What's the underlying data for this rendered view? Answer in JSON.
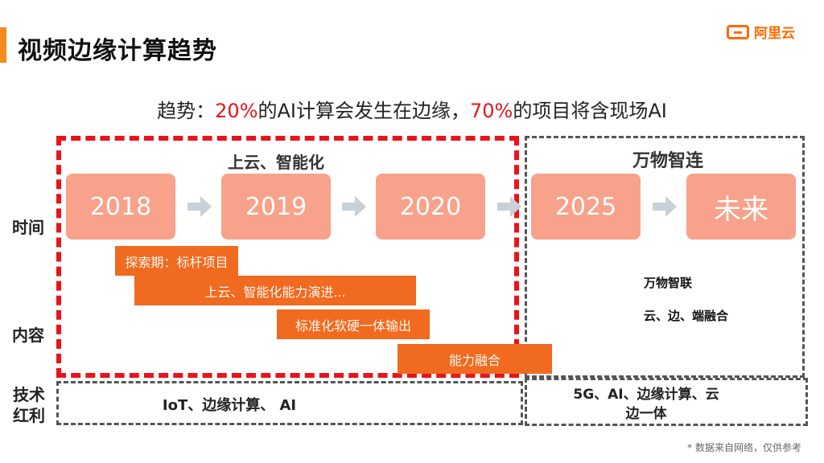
{
  "header": {
    "title": "视频边缘计算趋势",
    "logo_text": "阿里云",
    "accent_color": "#f28c1e",
    "logo_color": "#ff6a00"
  },
  "trend": {
    "prefix": "趋势：",
    "pct1": "20%",
    "mid": "的AI计算会发生在边缘，",
    "pct2": "70%",
    "suffix": "的项目将含现场AI",
    "highlight_color": "#e8141a"
  },
  "sections": {
    "left_title": "上云、智能化",
    "right_title": "万物智连"
  },
  "row_labels": {
    "time": "时间",
    "content": "内容",
    "tech": "技术\n红利"
  },
  "years": [
    "2018",
    "2019",
    "2020",
    "2025",
    "未来"
  ],
  "content_bars": [
    "探索期：标杆项目",
    "上云、智能化能力演进...",
    "标准化软硬一体输出",
    "能力融合"
  ],
  "right_content": [
    "万物智联",
    "云、边、端融合"
  ],
  "tech": {
    "left": "IoT、边缘计算、 AI",
    "right": "5G、AI、边缘计算、云\n边一体"
  },
  "footnote": "* 数据来自网络，仅供参考",
  "colors": {
    "year_box": "#f8a28b",
    "content_bar": "#f06a20",
    "dashed_red": "#e8141a",
    "dashed_gray": "#555555"
  }
}
